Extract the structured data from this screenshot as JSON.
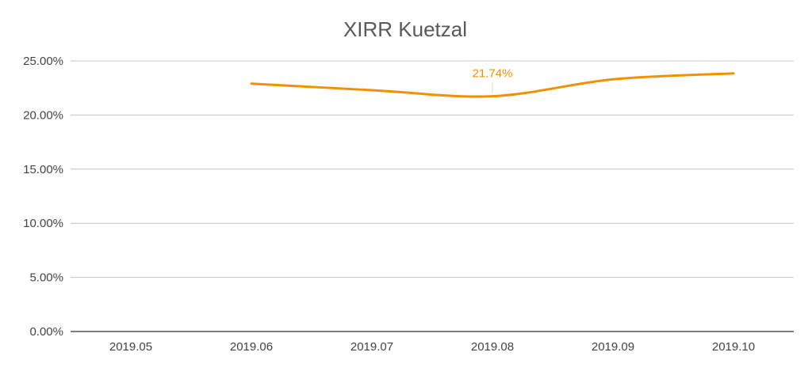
{
  "chart_data": {
    "type": "line",
    "title": "XIRR  Kuetzal",
    "xlabel": "",
    "ylabel": "",
    "categories": [
      "2019.05",
      "2019.06",
      "2019.07",
      "2019.08",
      "2019.09",
      "2019.10"
    ],
    "series": [
      {
        "values": [
          null,
          22.9,
          22.3,
          21.74,
          23.3,
          23.85
        ],
        "color": "#f29100",
        "smooth": true
      }
    ],
    "annotations": [
      {
        "category": "2019.08",
        "value": 21.74,
        "text": "21.74%"
      }
    ],
    "ylim": [
      0,
      25
    ],
    "yticks": [
      0,
      5,
      10,
      15,
      20,
      25
    ],
    "ytick_labels": [
      "0.00%",
      "5.00%",
      "10.00%",
      "15.00%",
      "20.00%",
      "25.00%"
    ],
    "grid": true,
    "legend": "none",
    "colors": {
      "grid": "#c4c4c4",
      "axis": "#333333",
      "label": "#f29100"
    }
  }
}
